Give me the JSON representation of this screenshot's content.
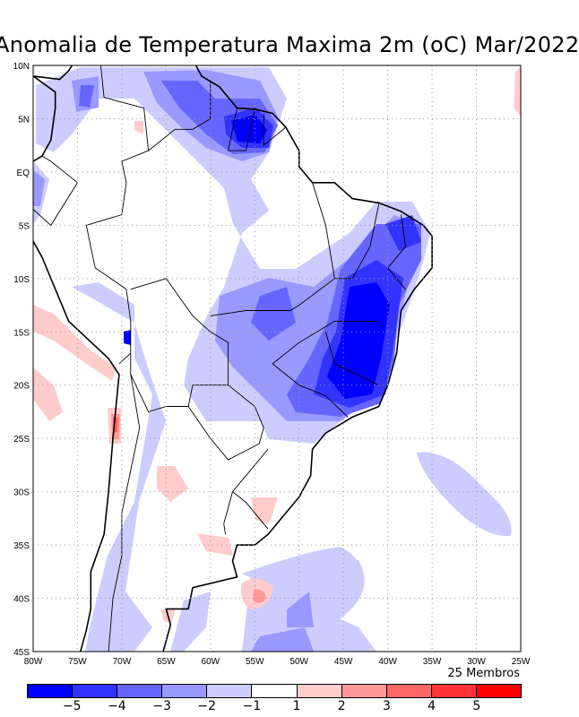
{
  "title": "Anomalia de Temperatura Maxima 2m (oC) Mar/2022",
  "x_ticks": [
    "80W",
    "75W",
    "70W",
    "65W",
    "60W",
    "55W",
    "50W",
    "45W",
    "40W",
    "35W",
    "30W",
    "25W"
  ],
  "y_ticks": [
    "10N",
    "5N",
    "EQ",
    "5S",
    "10S",
    "15S",
    "20S",
    "25S",
    "30S",
    "35S",
    "40S",
    "45S"
  ],
  "members": "25 Membros",
  "colorbar": {
    "colors": [
      "#0000ff",
      "#3333ff",
      "#6666ff",
      "#9999ff",
      "#ccccff",
      "#ffffff",
      "#ffcccc",
      "#ff9999",
      "#ff6666",
      "#ff3333",
      "#ff0000"
    ],
    "labels": [
      "−5",
      "−4",
      "−3",
      "−2",
      "−1",
      "1",
      "2",
      "3",
      "4",
      "5"
    ]
  }
}
